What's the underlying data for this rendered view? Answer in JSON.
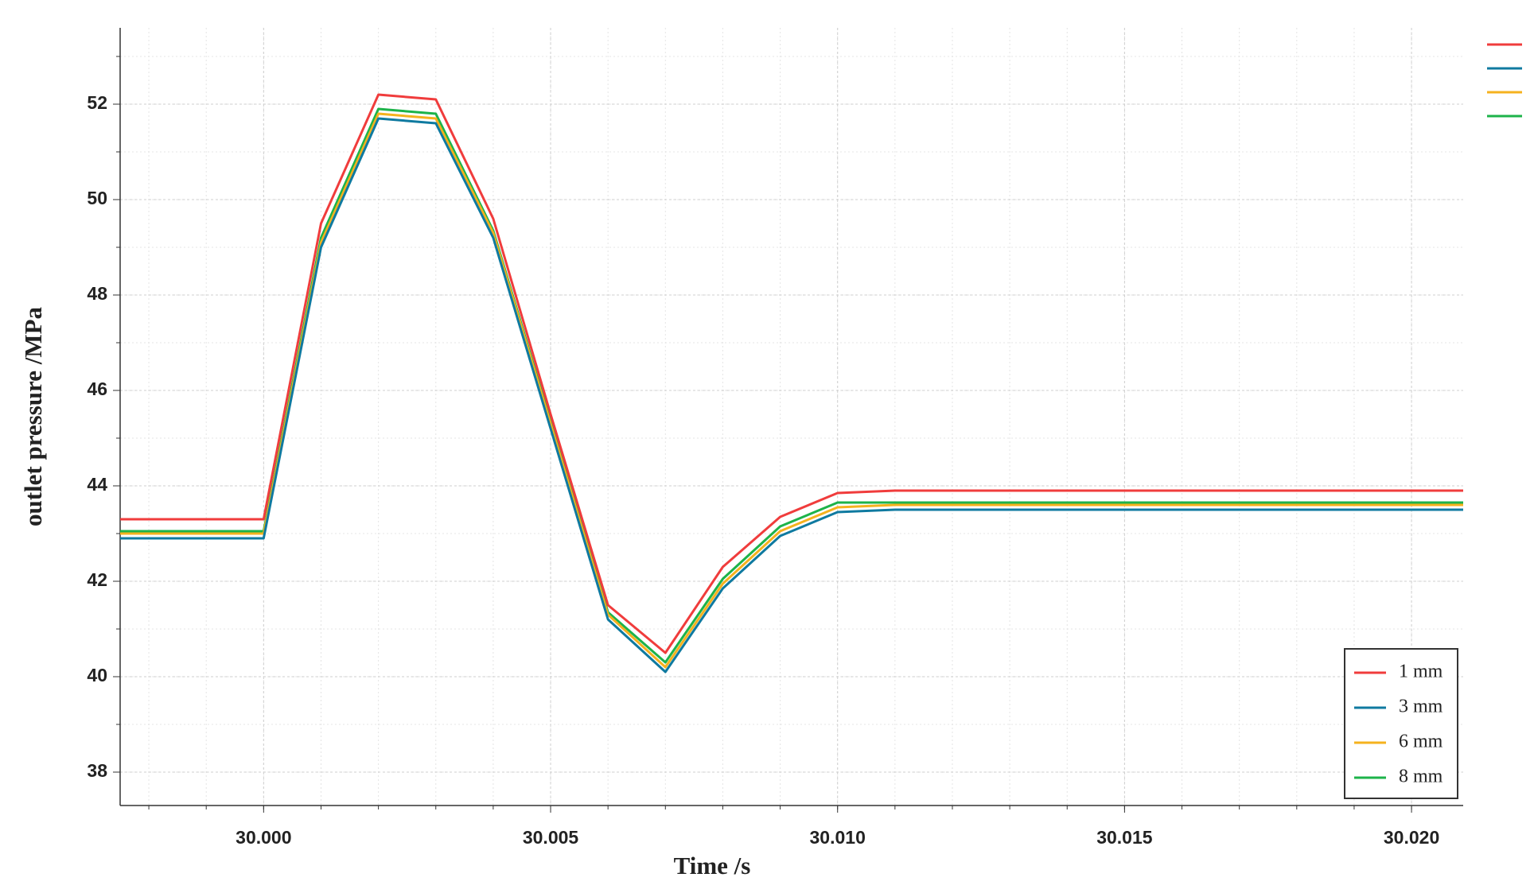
{
  "chart_data": {
    "type": "line",
    "x_label": "Time /s",
    "y_label": "outlet pressure /MPa",
    "x": [
      29.9975,
      30.0,
      30.001,
      30.002,
      30.003,
      30.004,
      30.005,
      30.006,
      30.007,
      30.008,
      30.009,
      30.01,
      30.011,
      30.0209
    ],
    "series": [
      {
        "name": "1 mm",
        "color": "#f03c3c",
        "values": [
          43.3,
          43.3,
          49.5,
          52.2,
          52.1,
          49.6,
          45.5,
          41.5,
          40.5,
          42.3,
          43.35,
          43.85,
          43.9,
          43.9
        ]
      },
      {
        "name": "3 mm",
        "color": "#0f7aa0",
        "values": [
          42.9,
          42.9,
          49.0,
          51.7,
          51.6,
          49.2,
          45.2,
          41.2,
          40.1,
          41.85,
          42.95,
          43.45,
          43.5,
          43.5
        ]
      },
      {
        "name": "6 mm",
        "color": "#f5b21e",
        "values": [
          43.0,
          43.0,
          49.1,
          51.8,
          51.7,
          49.3,
          45.3,
          41.3,
          40.2,
          41.95,
          43.05,
          43.55,
          43.6,
          43.6
        ]
      },
      {
        "name": "8 mm",
        "color": "#1db34a",
        "values": [
          43.05,
          43.05,
          49.2,
          51.9,
          51.8,
          49.35,
          45.35,
          41.35,
          40.3,
          42.05,
          43.15,
          43.65,
          43.65,
          43.65
        ]
      }
    ],
    "xlim": [
      29.9975,
      30.0209
    ],
    "xticks": [
      {
        "value": 30.0,
        "label": "30.000"
      },
      {
        "value": 30.005,
        "label": "30.005"
      },
      {
        "value": 30.01,
        "label": "30.010"
      },
      {
        "value": 30.015,
        "label": "30.015"
      },
      {
        "value": 30.02,
        "label": "30.020"
      }
    ],
    "ylim": [
      37.3,
      53.6
    ],
    "yticks": [
      38,
      40,
      42,
      44,
      46,
      48,
      50,
      52
    ],
    "grid": true,
    "legend": "lower right"
  }
}
